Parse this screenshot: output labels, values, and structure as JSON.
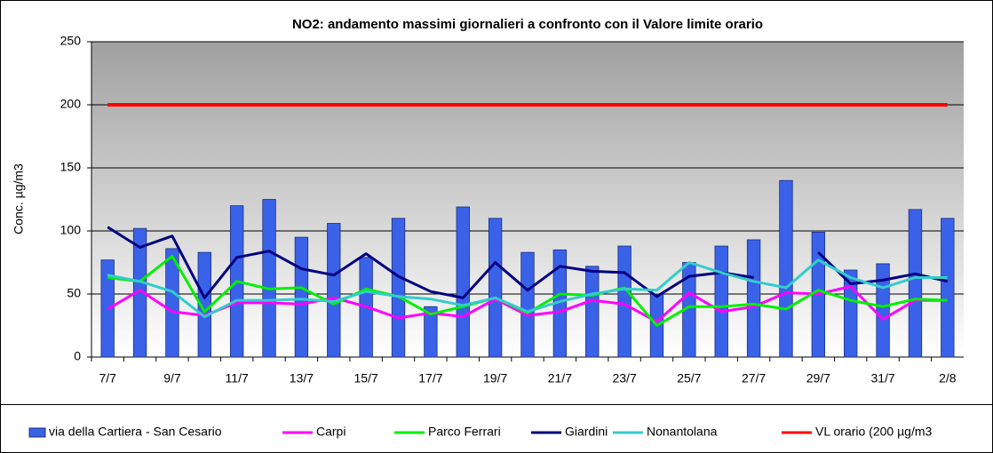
{
  "chart_data": {
    "type": "bar_line",
    "title": "NO2: andamento massimi giornalieri  a  confronto con il Valore limite orario",
    "y_label": "Conc. µg/m3",
    "categories": [
      "7/7",
      null,
      "9/7",
      null,
      "11/7",
      null,
      "13/7",
      null,
      "15/7",
      null,
      "17/7",
      null,
      "19/7",
      null,
      "21/7",
      null,
      "23/7",
      null,
      "25/7",
      null,
      "27/7",
      null,
      "29/7",
      null,
      "31/7",
      null,
      "2/8"
    ],
    "ylim": [
      0,
      250
    ],
    "yticks": [
      0,
      50,
      100,
      150,
      200,
      250
    ],
    "grid": true,
    "legend": "bottom",
    "series": [
      {
        "name": "via della Cartiera - San Cesario",
        "type": "bar",
        "color": "#3a62e8",
        "values": [
          77,
          102,
          86,
          83,
          120,
          125,
          95,
          106,
          79,
          110,
          40,
          119,
          110,
          83,
          85,
          72,
          88,
          50,
          75,
          88,
          93,
          140,
          99,
          69,
          74,
          117,
          110
        ]
      },
      {
        "name": "Carpi",
        "type": "line",
        "color": "#ff00ff",
        "values": [
          38,
          53,
          36,
          33,
          43,
          43,
          42,
          47,
          40,
          31,
          35,
          32,
          46,
          33,
          36,
          45,
          42,
          28,
          51,
          36,
          40,
          51,
          50,
          56,
          30,
          45,
          45
        ]
      },
      {
        "name": "Parco Ferrari",
        "type": "line",
        "color": "#00f000",
        "values": [
          63,
          60,
          80,
          36,
          60,
          54,
          55,
          42,
          54,
          48,
          34,
          40,
          47,
          35,
          50,
          49,
          55,
          25,
          40,
          40,
          42,
          38,
          53,
          45,
          40,
          46,
          45
        ]
      },
      {
        "name": "Giardini",
        "type": "line",
        "color": "#000080",
        "values": [
          103,
          87,
          96,
          47,
          79,
          84,
          70,
          65,
          82,
          64,
          52,
          47,
          75,
          53,
          72,
          68,
          67,
          48,
          64,
          67,
          63,
          null,
          83,
          58,
          61,
          66,
          60
        ]
      },
      {
        "name": "Nonantolana",
        "type": "line",
        "color": "#33cccc",
        "values": [
          65,
          60,
          52,
          32,
          45,
          45,
          46,
          44,
          52,
          48,
          46,
          41,
          47,
          36,
          44,
          50,
          54,
          53,
          75,
          67,
          60,
          55,
          77,
          63,
          55,
          63,
          63
        ]
      },
      {
        "name": "VL orario (200 µg/m3",
        "type": "line",
        "color": "#ff0000",
        "values": [
          200,
          200,
          200,
          200,
          200,
          200,
          200,
          200,
          200,
          200,
          200,
          200,
          200,
          200,
          200,
          200,
          200,
          200,
          200,
          200,
          200,
          200,
          200,
          200,
          200,
          200,
          200
        ]
      }
    ]
  }
}
